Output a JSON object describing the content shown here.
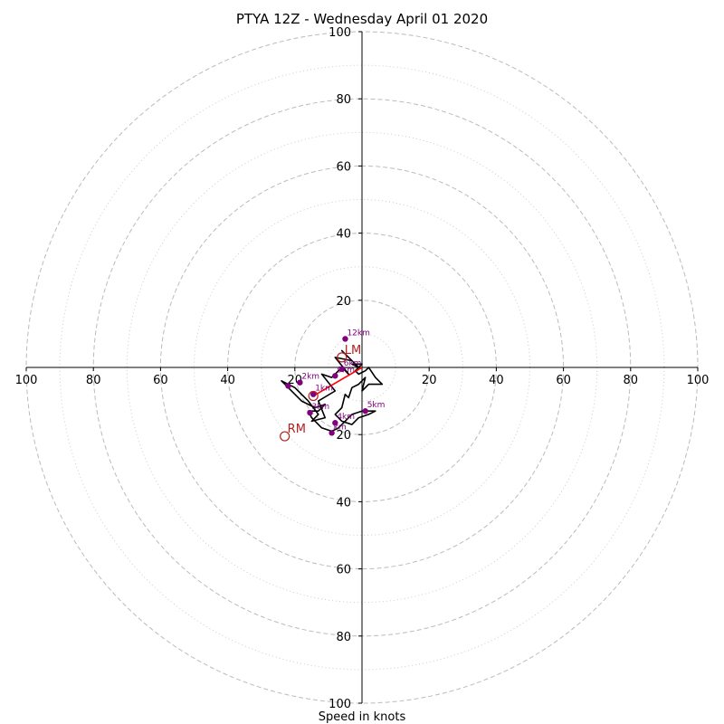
{
  "chart_data": {
    "type": "hodograph",
    "title": "PTYA 12Z - Wednesday April 01 2020",
    "xlabel": "Speed in knots",
    "xlim": [
      -100,
      100
    ],
    "ylim": [
      -100,
      100
    ],
    "x_ticks": [
      {
        "value": -100,
        "label": "100"
      },
      {
        "value": -80,
        "label": "80"
      },
      {
        "value": -60,
        "label": "60"
      },
      {
        "value": -40,
        "label": "40"
      },
      {
        "value": -20,
        "label": "20"
      },
      {
        "value": 20,
        "label": "20"
      },
      {
        "value": 40,
        "label": "40"
      },
      {
        "value": 60,
        "label": "60"
      },
      {
        "value": 80,
        "label": "80"
      },
      {
        "value": 100,
        "label": "100"
      }
    ],
    "y_ticks": [
      {
        "value": 100,
        "label": "100"
      },
      {
        "value": 80,
        "label": "80"
      },
      {
        "value": 60,
        "label": "60"
      },
      {
        "value": 40,
        "label": "40"
      },
      {
        "value": 20,
        "label": "20"
      },
      {
        "value": -20,
        "label": "20"
      },
      {
        "value": -40,
        "label": "40"
      },
      {
        "value": -60,
        "label": "60"
      },
      {
        "value": -80,
        "label": "80"
      },
      {
        "value": -100,
        "label": "100"
      }
    ],
    "rings_major": [
      20,
      40,
      60,
      80,
      100
    ],
    "rings_minor": [
      10,
      30,
      50,
      70,
      90
    ],
    "grid": true,
    "hodograph_trace": [
      [
        -14,
        -12
      ],
      [
        -18,
        -10
      ],
      [
        -24,
        -4
      ],
      [
        -20,
        -6
      ],
      [
        -16,
        -10
      ],
      [
        -13,
        -14
      ],
      [
        -15,
        -16
      ],
      [
        -11,
        -15
      ],
      [
        -13,
        -10
      ],
      [
        -8,
        -7
      ],
      [
        -12,
        -2
      ],
      [
        -9,
        -3
      ],
      [
        -6,
        0
      ],
      [
        -4,
        -2
      ],
      [
        -8,
        3
      ],
      [
        -3,
        2
      ],
      [
        -6,
        5
      ],
      [
        -2,
        1
      ],
      [
        -1,
        0
      ],
      [
        -3,
        1
      ],
      [
        -1,
        1
      ],
      [
        0,
        1
      ],
      [
        -2,
        -1
      ],
      [
        -1,
        -2
      ],
      [
        1,
        -1
      ],
      [
        2,
        0
      ],
      [
        4,
        -3
      ],
      [
        6,
        -5
      ],
      [
        2,
        -5
      ],
      [
        0,
        -7
      ],
      [
        1,
        -3
      ],
      [
        -1,
        -5
      ],
      [
        -3,
        -6
      ],
      [
        -4,
        -9
      ],
      [
        -5,
        -8
      ],
      [
        -6,
        -12
      ],
      [
        -8,
        -14
      ],
      [
        -6,
        -16
      ],
      [
        -3,
        -17
      ],
      [
        -1,
        -15
      ],
      [
        2,
        -14
      ],
      [
        4,
        -13
      ],
      [
        0,
        -13
      ],
      [
        -3,
        -14
      ],
      [
        -5,
        -16
      ],
      [
        -7,
        -18
      ],
      [
        -9,
        -19
      ],
      [
        -12,
        -18
      ],
      [
        -15,
        -15
      ],
      [
        -16,
        -13
      ],
      [
        -13,
        -13
      ],
      [
        -11,
        -11
      ],
      [
        -14,
        -12
      ]
    ],
    "km_markers": [
      {
        "label": "1km",
        "u": -14.5,
        "v": -8
      },
      {
        "label": "2km",
        "u": -18.5,
        "v": -4.5
      },
      {
        "label": "",
        "u": -22,
        "v": -5.5
      },
      {
        "label": "3km",
        "u": -15.5,
        "v": -13.5
      },
      {
        "label": "4km",
        "u": -8,
        "v": -16.5
      },
      {
        "label": "5km",
        "u": 1,
        "v": -13
      },
      {
        "label": "km",
        "u": -9,
        "v": -19.5
      },
      {
        "label": "9km",
        "u": -8,
        "v": -2.5
      },
      {
        "label": "6km",
        "u": -6,
        "v": -0.5
      },
      {
        "label": "12km",
        "u": -5,
        "v": 8.5
      }
    ],
    "storm_motion": [
      {
        "label": "LM",
        "u": -6,
        "v": 3
      },
      {
        "label": "RM",
        "u": -23,
        "v": -20.5
      },
      {
        "label": "",
        "u": -14.5,
        "v": -8.5
      }
    ],
    "mean_wind_vector": {
      "u": -14.5,
      "v": -8.5
    },
    "colors": {
      "trace": "#000000",
      "markers": "#800080",
      "storm_motion": "#b22222",
      "vector": "#ff0000",
      "grid": "#bbbbbb",
      "axis": "#000000"
    }
  }
}
